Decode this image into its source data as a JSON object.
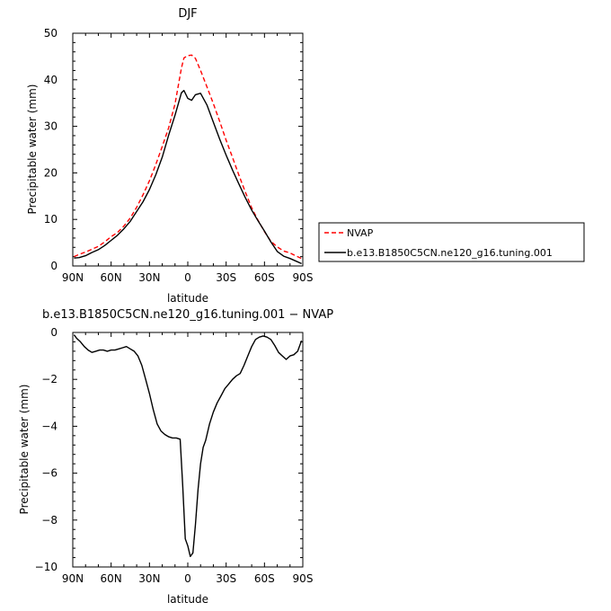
{
  "chart_data": [
    {
      "type": "line",
      "title": "DJF",
      "xlabel": "latitude",
      "ylabel": "Precipitable water (mm)",
      "x_ticks": [
        {
          "value": 90,
          "label": "90N"
        },
        {
          "value": 60,
          "label": "60N"
        },
        {
          "value": 30,
          "label": "30N"
        },
        {
          "value": 0,
          "label": "0"
        },
        {
          "value": -30,
          "label": "30S"
        },
        {
          "value": -60,
          "label": "60S"
        },
        {
          "value": -90,
          "label": "90S"
        }
      ],
      "y_ticks": [
        0,
        10,
        20,
        30,
        40,
        50
      ],
      "xlim": [
        90,
        -90
      ],
      "ylim": [
        0,
        50
      ],
      "grid": false,
      "legend_position": "right",
      "series": [
        {
          "name": "NVAP",
          "color": "#ff0000",
          "dash": "dashed",
          "x": [
            89,
            85,
            80,
            75,
            70,
            65,
            60,
            55,
            50,
            45,
            40,
            35,
            30,
            25,
            20,
            15,
            10,
            5,
            3,
            0,
            -3,
            -6,
            -10,
            -15,
            -20,
            -25,
            -30,
            -35,
            -40,
            -45,
            -50,
            -55,
            -60,
            -65,
            -70,
            -75,
            -80,
            -85,
            -89
          ],
          "y": [
            2.0,
            2.5,
            3.0,
            3.6,
            4.2,
            5.2,
            6.3,
            7.2,
            8.6,
            10.3,
            12.6,
            15.3,
            18.3,
            21.8,
            25.7,
            29.7,
            34.8,
            42.5,
            44.7,
            45.2,
            45.3,
            44.6,
            42.0,
            38.5,
            34.9,
            31.0,
            27.0,
            23.3,
            19.5,
            15.9,
            12.5,
            9.8,
            7.4,
            5.3,
            4.1,
            3.2,
            2.8,
            2.1,
            1.6
          ]
        },
        {
          "name": "b.e13.B1850C5CN.ne120_g16.tuning.001",
          "color": "#000000",
          "dash": "solid",
          "x": [
            89,
            85,
            80,
            75,
            70,
            65,
            60,
            55,
            50,
            45,
            40,
            35,
            30,
            25,
            20,
            15,
            10,
            5,
            3,
            0,
            -3,
            -6,
            -10,
            -15,
            -20,
            -25,
            -30,
            -35,
            -40,
            -45,
            -50,
            -55,
            -60,
            -65,
            -70,
            -75,
            -80,
            -85,
            -89
          ],
          "y": [
            1.7,
            1.8,
            2.2,
            2.9,
            3.5,
            4.4,
            5.5,
            6.6,
            8.0,
            9.6,
            11.7,
            13.8,
            16.4,
            19.6,
            23.4,
            28.1,
            32.4,
            37.2,
            37.7,
            36.0,
            35.6,
            36.8,
            37.1,
            34.6,
            30.9,
            27.2,
            23.8,
            20.6,
            17.6,
            14.7,
            12.0,
            9.7,
            7.5,
            5.2,
            3.1,
            2.1,
            1.6,
            1.0,
            0.5
          ]
        }
      ]
    },
    {
      "type": "line",
      "title": "b.e13.B1850C5CN.ne120_g16.tuning.001 − NVAP",
      "xlabel": "latitude",
      "ylabel": "Precipitable water (mm)",
      "x_ticks": [
        {
          "value": 90,
          "label": "90N"
        },
        {
          "value": 60,
          "label": "60N"
        },
        {
          "value": 30,
          "label": "30N"
        },
        {
          "value": 0,
          "label": "0"
        },
        {
          "value": -30,
          "label": "30S"
        },
        {
          "value": -60,
          "label": "60S"
        },
        {
          "value": -90,
          "label": "90S"
        }
      ],
      "y_ticks": [
        0,
        -2,
        -4,
        -6,
        -8,
        -10
      ],
      "y_tick_labels": [
        "0",
        "−2",
        "−4",
        "−6",
        "−8",
        "−10"
      ],
      "xlim": [
        90,
        -90
      ],
      "ylim": [
        -10,
        0
      ],
      "grid": false,
      "series": [
        {
          "color": "#000000",
          "dash": "solid",
          "x": [
            89,
            87,
            84,
            81,
            78,
            75,
            72,
            69,
            66,
            63,
            60,
            57,
            54,
            51,
            48,
            45,
            42,
            39,
            36,
            33,
            30,
            27,
            24,
            21,
            18,
            15,
            12,
            9,
            6,
            4,
            2,
            0,
            -2,
            -4,
            -6,
            -8,
            -10,
            -12,
            -14,
            -17,
            -20,
            -23,
            -26,
            -29,
            -32,
            -35,
            -38,
            -41,
            -44,
            -47,
            -50,
            -53,
            -56,
            -59,
            -62,
            -65,
            -68,
            -71,
            -74,
            -77,
            -80,
            -83,
            -86,
            -89
          ],
          "y": [
            -0.1,
            -0.25,
            -0.4,
            -0.6,
            -0.75,
            -0.85,
            -0.8,
            -0.75,
            -0.75,
            -0.8,
            -0.75,
            -0.75,
            -0.7,
            -0.65,
            -0.6,
            -0.7,
            -0.8,
            -1.0,
            -1.4,
            -2.0,
            -2.6,
            -3.3,
            -3.9,
            -4.2,
            -4.35,
            -4.45,
            -4.5,
            -4.5,
            -4.55,
            -6.5,
            -8.8,
            -9.1,
            -9.55,
            -9.4,
            -8.2,
            -6.7,
            -5.6,
            -4.9,
            -4.6,
            -3.9,
            -3.4,
            -3.0,
            -2.7,
            -2.4,
            -2.2,
            -2.0,
            -1.85,
            -1.75,
            -1.4,
            -1.0,
            -0.6,
            -0.3,
            -0.2,
            -0.15,
            -0.2,
            -0.3,
            -0.55,
            -0.85,
            -1.0,
            -1.15,
            -1.0,
            -0.95,
            -0.8,
            -0.35
          ]
        }
      ]
    }
  ]
}
